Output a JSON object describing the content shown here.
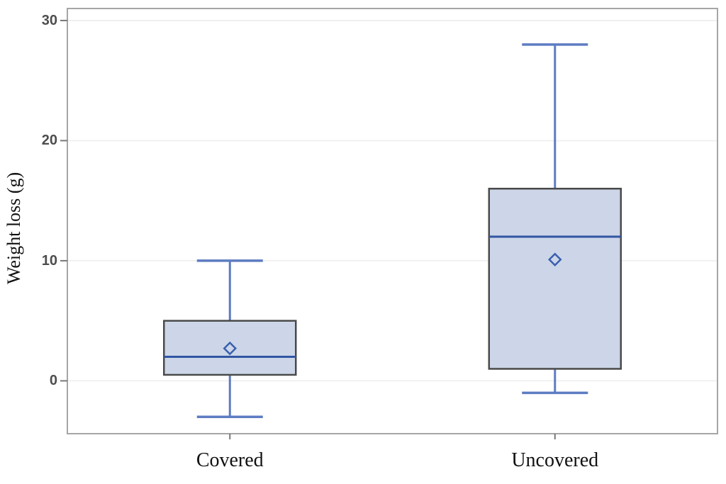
{
  "chart_data": {
    "type": "boxplot",
    "title": "",
    "xlabel": "",
    "ylabel": "Weight loss (g)",
    "categories": [
      "Covered",
      "Uncovered"
    ],
    "yticks": [
      0,
      10,
      20,
      30
    ],
    "ylim": [
      -4.4,
      31
    ],
    "grid": true,
    "legend": "none",
    "series": [
      {
        "name": "Covered",
        "min": -3,
        "q1": 0.5,
        "median": 2,
        "q3": 5,
        "max": 10,
        "mean": 2.7
      },
      {
        "name": "Uncovered",
        "min": -1,
        "q1": 1,
        "median": 12,
        "q3": 16,
        "max": 28,
        "mean": 10.1
      }
    ],
    "colors": {
      "background": "#ffffff",
      "box_fill": "#ccd6e8",
      "box_border": "#4a4a4a",
      "median": "#3156a2",
      "whisker": "#5d7cc2",
      "mean_marker": "#3a5fae",
      "gridline": "#f0f0f0",
      "frame_border": "#a6a6a6",
      "tick": "#787878",
      "tick_label": "#4d4d4d",
      "axis_text": "#111111"
    }
  }
}
